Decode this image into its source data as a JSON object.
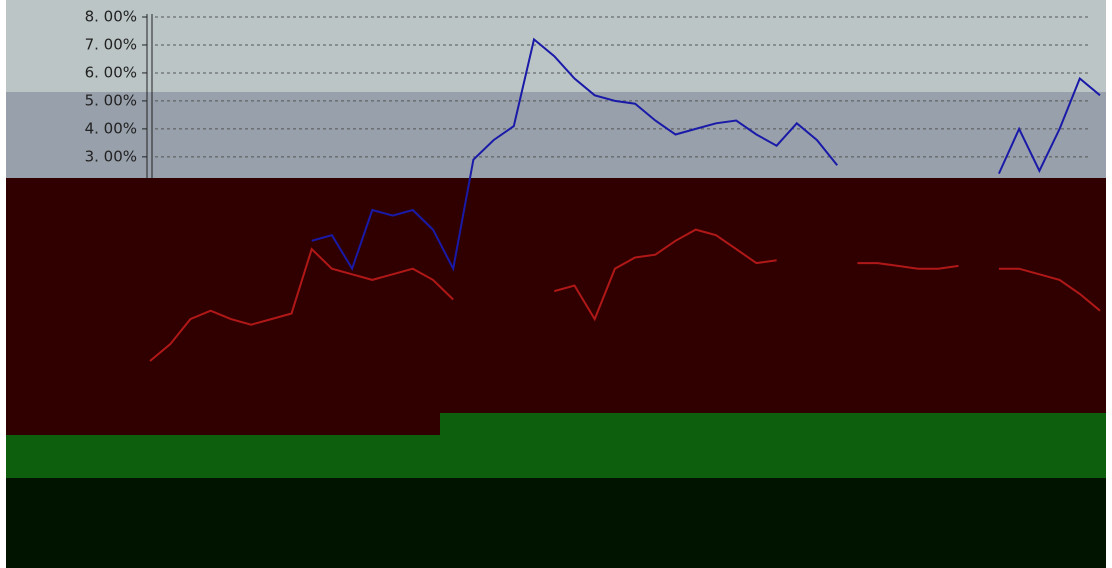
{
  "chart_data": {
    "type": "line",
    "ylim": [
      -11.7,
      8
    ],
    "yticks": [
      {
        "value": 8,
        "label": "8. 00%"
      },
      {
        "value": 7,
        "label": "7. 00%"
      },
      {
        "value": 6,
        "label": "6. 00%"
      },
      {
        "value": 5,
        "label": "5. 00%"
      },
      {
        "value": 4,
        "label": "4. 00%"
      },
      {
        "value": 3,
        "label": "3. 00%"
      }
    ],
    "grid": true,
    "series": [
      {
        "color": "#1a1aa8",
        "values": [
          null,
          null,
          null,
          null,
          null,
          null,
          null,
          null,
          0.0,
          0.2,
          -1.0,
          1.1,
          0.9,
          1.1,
          0.4,
          -1.0,
          2.9,
          3.6,
          4.1,
          7.2,
          6.6,
          5.8,
          5.2,
          5.0,
          4.9,
          4.3,
          3.8,
          4.0,
          4.2,
          4.3,
          3.8,
          3.4,
          4.2,
          3.6,
          2.7,
          null,
          null,
          null,
          null,
          null,
          null,
          null,
          2.4,
          4.0,
          2.5,
          4.0,
          5.8,
          5.2
        ]
      },
      {
        "color": "#b01818",
        "values": [
          -4.3,
          -3.7,
          -2.8,
          -2.5,
          -2.8,
          -3.0,
          -2.8,
          -2.6,
          -0.3,
          -1.0,
          -1.2,
          -1.4,
          -1.2,
          -1.0,
          -1.4,
          -2.1,
          null,
          -1.8,
          null,
          null,
          -1.8,
          -1.6,
          -2.8,
          -1.0,
          -0.6,
          -0.5,
          0.0,
          0.4,
          0.2,
          -0.3,
          -0.8,
          -0.7,
          null,
          null,
          null,
          -0.8,
          -0.8,
          -0.9,
          -1.0,
          -1.0,
          -0.9,
          null,
          -1.0,
          -1.0,
          -1.2,
          -1.4,
          -1.9,
          -2.5
        ]
      }
    ]
  }
}
